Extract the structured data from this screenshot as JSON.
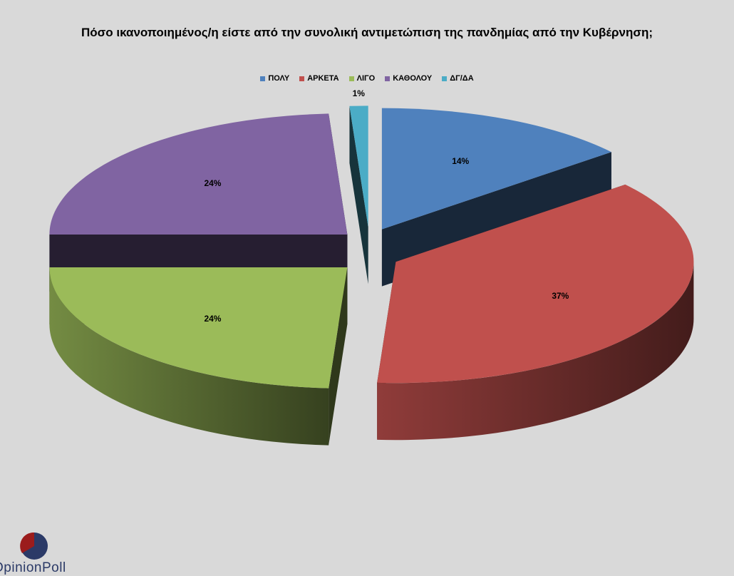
{
  "chart_data": {
    "type": "pie",
    "title": "Πόσο ικανοποιημένος/η είστε από την συνολική αντιμετώπιση της πανδημίας από την Κυβέρνηση;",
    "legend_position": "top",
    "slices": [
      {
        "name": "ΠΟΛΥ",
        "value": 14,
        "label": "14%",
        "color": "#4f81bd"
      },
      {
        "name": "ΑΡΚΕΤΑ",
        "value": 37,
        "label": "37%",
        "color": "#c0504d"
      },
      {
        "name": "ΛΙΓΟ",
        "value": 24,
        "label": "24%",
        "color": "#9bbb59"
      },
      {
        "name": "ΚΑΘΟΛΟΥ",
        "value": 24,
        "label": "24%",
        "color": "#8064a2"
      },
      {
        "name": "ΔΓ/ΔΑ",
        "value": 1,
        "label": "1%",
        "color": "#4bacc6"
      }
    ]
  },
  "logo": {
    "text": "OpinionPoll"
  }
}
